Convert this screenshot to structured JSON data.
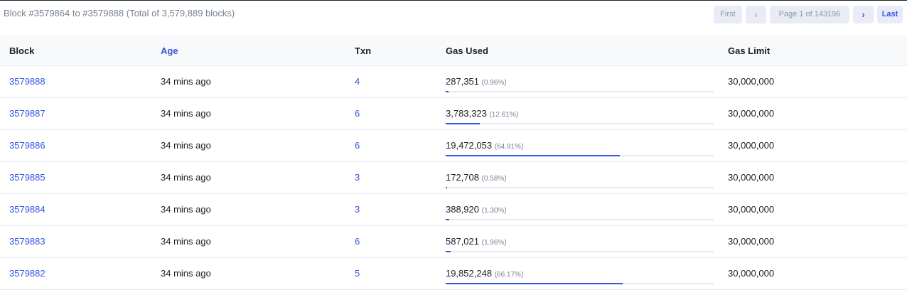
{
  "summary": "Block #3579864 to #3579888 (Total of 3,579,889 blocks)",
  "pager": {
    "first": "First",
    "prev": "‹",
    "page": "Page 1 of 143196",
    "next": "›",
    "last": "Last"
  },
  "columns": {
    "block": "Block",
    "age": "Age",
    "txn": "Txn",
    "gas_used": "Gas Used",
    "gas_limit": "Gas Limit"
  },
  "colors": {
    "accent": "#3556e0",
    "muted": "#77838f",
    "border": "#e7eaf3"
  },
  "rows": [
    {
      "block": "3579888",
      "age": "34 mins ago",
      "txn": "4",
      "gas_used": "287,351",
      "gas_pct_label": "(0.96%)",
      "gas_pct": 0.96,
      "gas_limit": "30,000,000"
    },
    {
      "block": "3579887",
      "age": "34 mins ago",
      "txn": "6",
      "gas_used": "3,783,323",
      "gas_pct_label": "(12.61%)",
      "gas_pct": 12.61,
      "gas_limit": "30,000,000"
    },
    {
      "block": "3579886",
      "age": "34 mins ago",
      "txn": "6",
      "gas_used": "19,472,053",
      "gas_pct_label": "(64.91%)",
      "gas_pct": 64.91,
      "gas_limit": "30,000,000"
    },
    {
      "block": "3579885",
      "age": "34 mins ago",
      "txn": "3",
      "gas_used": "172,708",
      "gas_pct_label": "(0.58%)",
      "gas_pct": 0.58,
      "gas_limit": "30,000,000"
    },
    {
      "block": "3579884",
      "age": "34 mins ago",
      "txn": "3",
      "gas_used": "388,920",
      "gas_pct_label": "(1.30%)",
      "gas_pct": 1.3,
      "gas_limit": "30,000,000"
    },
    {
      "block": "3579883",
      "age": "34 mins ago",
      "txn": "6",
      "gas_used": "587,021",
      "gas_pct_label": "(1.96%)",
      "gas_pct": 1.96,
      "gas_limit": "30,000,000"
    },
    {
      "block": "3579882",
      "age": "34 mins ago",
      "txn": "5",
      "gas_used": "19,852,248",
      "gas_pct_label": "(66.17%)",
      "gas_pct": 66.17,
      "gas_limit": "30,000,000"
    }
  ]
}
